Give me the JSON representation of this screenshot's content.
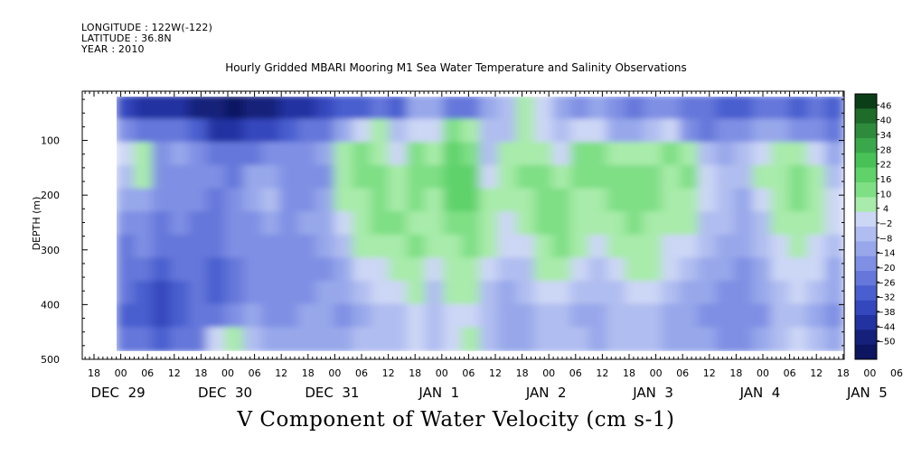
{
  "header": {
    "longitude": "LONGITUDE : 122W(-122)",
    "latitude": "LATITUDE : 36.8N",
    "year": "YEAR : 2010"
  },
  "chart_data": {
    "type": "heatmap",
    "title": "Hourly Gridded MBARI Mooring M1 Sea Water Temperature and Salinity Observations",
    "xlabel": "V Component of Water Velocity (cm s-1)",
    "ylabel": "DEPTH (m)",
    "ylim": [
      500,
      10
    ],
    "y_reversed": true,
    "y_ticks": [
      100,
      200,
      300,
      400,
      500
    ],
    "y_tick_labels": [
      "100",
      "200",
      "300",
      "400",
      "500"
    ],
    "data_depth_range": [
      20,
      485
    ],
    "x_hour_ticks": [
      "18",
      "00",
      "06",
      "12",
      "18",
      "00",
      "06",
      "12",
      "18",
      "00",
      "06",
      "12",
      "18",
      "00",
      "06",
      "12",
      "18",
      "00",
      "06",
      "12",
      "18",
      "00",
      "06",
      "12",
      "18",
      "00",
      "06",
      "12",
      "18",
      "00",
      "06",
      "12"
    ],
    "x_day_labels": [
      "DEC 29",
      "DEC 30",
      "DEC 31",
      "JAN  1",
      "JAN  2",
      "JAN  3",
      "JAN  4",
      "JAN  5"
    ],
    "colorbar": {
      "tick_labels": [
        "46",
        "40",
        "34",
        "28",
        "22",
        "16",
        "10",
        "4",
        "-2",
        "-8",
        "-14",
        "-20",
        "-26",
        "-32",
        "-38",
        "-44",
        "-50"
      ],
      "range": [
        -50,
        50
      ],
      "colors_high_to_low": [
        "#0b3d17",
        "#1e6b2a",
        "#2e8b3c",
        "#3aa84a",
        "#48c257",
        "#5fd26a",
        "#7fdf85",
        "#a8ebaa",
        "#ccd6f5",
        "#b0bdf0",
        "#97a7ea",
        "#7f8fe4",
        "#6577da",
        "#4a5fcf",
        "#3447bd",
        "#2232a1",
        "#15207a",
        "#0d1460"
      ]
    },
    "cell_values": [
      [
        -30,
        -38,
        -34,
        -36,
        -40,
        -42,
        -46,
        -44,
        -40,
        -36,
        -34,
        -30,
        -26,
        -26,
        -22,
        -24,
        -10,
        -6,
        -18,
        -20,
        -6,
        -4,
        8,
        4,
        -10,
        -14,
        -8,
        -12,
        -18,
        -14,
        -12,
        -20,
        -22,
        -26,
        -24,
        -20,
        -22,
        -26,
        -18,
        -24
      ],
      [
        -12,
        -22,
        -18,
        -22,
        -26,
        -34,
        -36,
        -32,
        -28,
        -24,
        -22,
        -18,
        -6,
        2,
        6,
        -4,
        2,
        4,
        12,
        10,
        -4,
        -2,
        6,
        2,
        -2,
        2,
        4,
        -6,
        -10,
        -2,
        4,
        -14,
        -18,
        -16,
        -12,
        -8,
        -10,
        -14,
        -16,
        -20
      ],
      [
        2,
        8,
        -12,
        -10,
        -16,
        -18,
        -20,
        -18,
        -16,
        -14,
        -16,
        -10,
        8,
        12,
        10,
        4,
        14,
        10,
        18,
        14,
        -2,
        6,
        10,
        8,
        4,
        14,
        12,
        10,
        6,
        10,
        14,
        6,
        -4,
        -6,
        -2,
        4,
        8,
        6,
        4,
        -8
      ],
      [
        -4,
        6,
        -14,
        -12,
        -14,
        -16,
        -18,
        -8,
        -10,
        -12,
        -14,
        -12,
        10,
        16,
        12,
        8,
        16,
        12,
        20,
        18,
        4,
        10,
        14,
        12,
        10,
        16,
        14,
        12,
        14,
        12,
        10,
        12,
        2,
        -2,
        -4,
        8,
        10,
        12,
        10,
        -2
      ],
      [
        -10,
        -6,
        -16,
        -14,
        -16,
        -18,
        -16,
        -10,
        -4,
        -12,
        -12,
        -10,
        6,
        8,
        14,
        10,
        12,
        10,
        18,
        20,
        6,
        6,
        10,
        14,
        12,
        10,
        8,
        14,
        16,
        12,
        10,
        10,
        4,
        0,
        -6,
        4,
        8,
        14,
        8,
        4
      ],
      [
        -16,
        -14,
        -18,
        -16,
        -18,
        -20,
        -14,
        -12,
        -8,
        -14,
        -10,
        -8,
        2,
        8,
        12,
        12,
        10,
        8,
        14,
        16,
        8,
        4,
        6,
        12,
        14,
        8,
        6,
        10,
        12,
        10,
        6,
        6,
        0,
        -4,
        -8,
        0,
        6,
        8,
        6,
        2
      ],
      [
        -18,
        -16,
        -20,
        -18,
        -20,
        -22,
        -16,
        -14,
        -12,
        -16,
        -12,
        -10,
        -4,
        6,
        8,
        10,
        12,
        6,
        10,
        14,
        8,
        2,
        4,
        10,
        12,
        6,
        4,
        8,
        10,
        8,
        4,
        2,
        -2,
        -6,
        -10,
        -4,
        4,
        6,
        4,
        -2
      ],
      [
        -20,
        -22,
        -24,
        -22,
        -20,
        -24,
        -18,
        -16,
        -14,
        -14,
        -14,
        -12,
        -8,
        2,
        4,
        6,
        10,
        2,
        8,
        10,
        4,
        -2,
        0,
        6,
        8,
        2,
        0,
        4,
        6,
        6,
        2,
        -4,
        -6,
        -10,
        -12,
        -8,
        2,
        4,
        2,
        -6
      ],
      [
        -22,
        -26,
        -28,
        -24,
        -22,
        -24,
        -18,
        -16,
        -12,
        -14,
        -12,
        -10,
        -10,
        -2,
        2,
        4,
        6,
        0,
        6,
        8,
        0,
        -6,
        -4,
        2,
        4,
        -2,
        -4,
        0,
        4,
        2,
        -2,
        -6,
        -10,
        -12,
        -14,
        -10,
        0,
        2,
        -2,
        -10
      ],
      [
        -24,
        -26,
        -30,
        -26,
        -22,
        -20,
        -14,
        -10,
        -12,
        -12,
        -10,
        -8,
        -12,
        -6,
        -2,
        0,
        2,
        -4,
        2,
        4,
        -4,
        -8,
        -8,
        -2,
        0,
        -6,
        -8,
        -2,
        0,
        -2,
        -6,
        -10,
        -12,
        -14,
        -16,
        -12,
        -4,
        -2,
        -6,
        -12
      ],
      [
        -20,
        -22,
        -26,
        -22,
        -20,
        4,
        10,
        -2,
        -8,
        -10,
        -8,
        -6,
        -8,
        -4,
        -4,
        -2,
        4,
        -2,
        2,
        6,
        -2,
        -6,
        -6,
        -4,
        -2,
        -4,
        -6,
        -4,
        -2,
        -4,
        -8,
        -10,
        -10,
        -12,
        -14,
        -10,
        -2,
        2,
        -4,
        -10
      ]
    ],
    "cell_grid_note": "rows from shallow (20 m) to deep (485 m); columns from DEC 29 ~22h to JAN 5 ~20h"
  }
}
